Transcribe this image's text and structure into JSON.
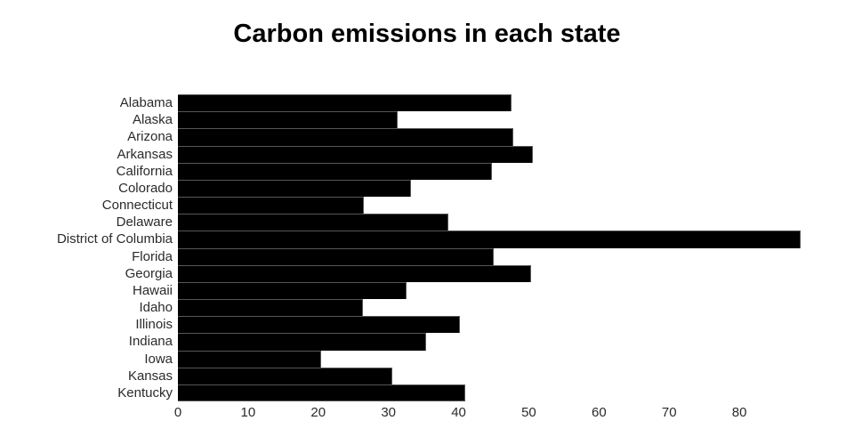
{
  "chart_data": {
    "type": "bar",
    "orientation": "horizontal",
    "title": "Carbon emissions in each state",
    "xlabel": "",
    "ylabel": "",
    "categories": [
      "Alabama",
      "Alaska",
      "Arizona",
      "Arkansas",
      "California",
      "Colorado",
      "Connecticut",
      "Delaware",
      "District of Columbia",
      "Florida",
      "Georgia",
      "Hawaii",
      "Idaho",
      "Illinois",
      "Indiana",
      "Iowa",
      "Kansas",
      "Kentucky"
    ],
    "values": [
      47.5,
      31.3,
      47.8,
      50.6,
      44.7,
      33.2,
      26.5,
      38.5,
      88.7,
      45.0,
      50.3,
      32.6,
      26.4,
      40.2,
      35.4,
      20.4,
      30.5,
      41.0
    ],
    "xlim": [
      0,
      90
    ],
    "xticks": [
      0,
      10,
      20,
      30,
      40,
      50,
      60,
      70,
      80
    ],
    "grid": false,
    "legend": false,
    "colors": {
      "bar_fill": "#000000",
      "bar_edge": "#565656",
      "axis_text": "#2a2a2a",
      "title_text": "#000000",
      "background": "#ffffff"
    }
  }
}
